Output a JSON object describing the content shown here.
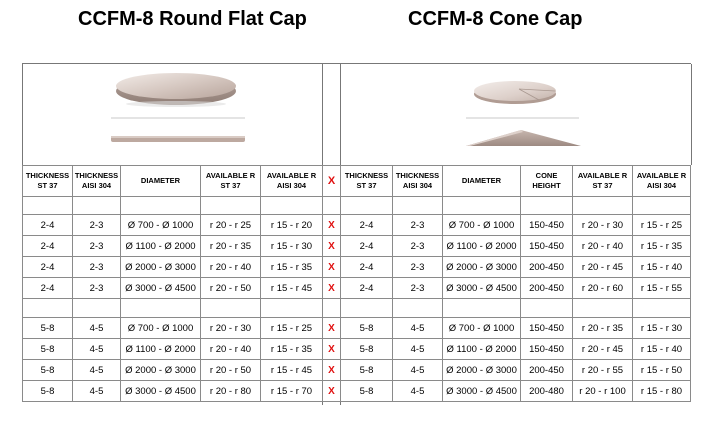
{
  "titles": {
    "left": "CCFM-8  Round Flat Cap",
    "right": "CCFM-8  Cone Cap"
  },
  "mark": "X",
  "headers": {
    "left": [
      "THICKNESS ST 37",
      "THICKNESS AISI 304",
      "DIAMETER",
      "AVAILABLE R ST 37",
      "AVAILABLE R AISI 304"
    ],
    "right": [
      "THICKNESS ST 37",
      "THICKNESS AISI 304",
      "DIAMETER",
      "CONE HEIGHT",
      "AVAILABLE R ST 37",
      "AVAILABLE R AISI 304"
    ]
  },
  "groups": [
    {
      "rows": [
        {
          "left": [
            "2-4",
            "2-3",
            "Ø 700 - Ø 1000",
            "r 20 - r 25",
            "r 15 - r 20"
          ],
          "right": [
            "2-4",
            "2-3",
            "Ø 700 - Ø 1000",
            "150-450",
            "r 20 - r 30",
            "r 15 - r 25"
          ]
        },
        {
          "left": [
            "2-4",
            "2-3",
            "Ø 1100 - Ø 2000",
            "r 20 - r 35",
            "r 15 - r 30"
          ],
          "right": [
            "2-4",
            "2-3",
            "Ø 1100 - Ø 2000",
            "150-450",
            "r 20 - r 40",
            "r 15 - r 35"
          ]
        },
        {
          "left": [
            "2-4",
            "2-3",
            "Ø 2000 - Ø 3000",
            "r 20 - r 40",
            "r 15 - r 35"
          ],
          "right": [
            "2-4",
            "2-3",
            "Ø 2000 - Ø 3000",
            "200-450",
            "r 20 - r 45",
            "r 15 - r 40"
          ]
        },
        {
          "left": [
            "2-4",
            "2-3",
            "Ø 3000 - Ø 4500",
            "r 20 - r 50",
            "r 15 - r 45"
          ],
          "right": [
            "2-4",
            "2-3",
            "Ø 3000 - Ø 4500",
            "200-450",
            "r 20 - r 60",
            "r 15 - r 55"
          ]
        }
      ]
    },
    {
      "rows": [
        {
          "left": [
            "5-8",
            "4-5",
            "Ø 700 - Ø 1000",
            "r 20 - r 30",
            "r 15 - r 25"
          ],
          "right": [
            "5-8",
            "4-5",
            "Ø 700 - Ø 1000",
            "150-450",
            "r 20 - r 35",
            "r 15 - r 30"
          ]
        },
        {
          "left": [
            "5-8",
            "4-5",
            "Ø 1100 - Ø 2000",
            "r 20 - r 40",
            "r 15 - r 35"
          ],
          "right": [
            "5-8",
            "4-5",
            "Ø 1100 - Ø 2000",
            "150-450",
            "r 20 - r 45",
            "r 15 - r 40"
          ]
        },
        {
          "left": [
            "5-8",
            "4-5",
            "Ø 2000 - Ø 3000",
            "r 20 - r 50",
            "r 15 - r 45"
          ],
          "right": [
            "5-8",
            "4-5",
            "Ø 2000 - Ø 3000",
            "200-450",
            "r 20 - r 55",
            "r 15 - r 50"
          ]
        },
        {
          "left": [
            "5-8",
            "4-5",
            "Ø 3000 - Ø 4500",
            "r 20 - r 80",
            "r 15 - r 70"
          ],
          "right": [
            "5-8",
            "4-5",
            "Ø 3000 - Ø 4500",
            "200-480",
            "r 20 - r 100",
            "r 15 - r 80"
          ]
        }
      ]
    }
  ],
  "colors": {
    "mark": "#e01010",
    "cap_surface": "#c9b9b1",
    "grid": "#8a8a8a"
  }
}
